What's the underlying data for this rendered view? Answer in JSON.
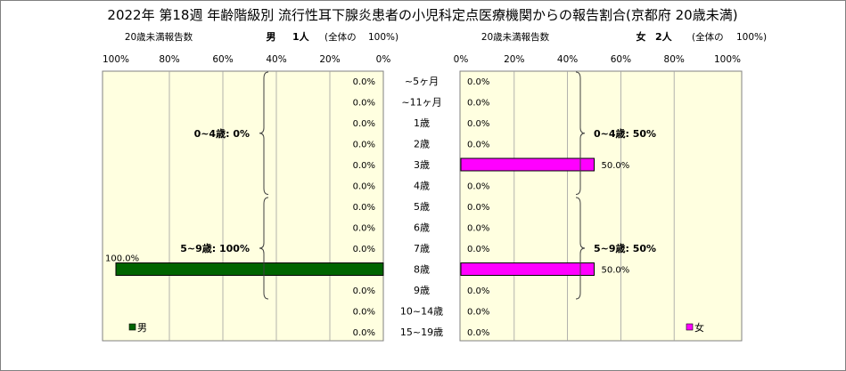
{
  "title": "2022年 第18週 年齢階級別 流行性耳下腺炎患者の小児科定点医療機関からの報告割合(京都府 20歳未満)",
  "left_header": {
    "caption": "20歳未満報告数",
    "label": "男",
    "count": "1人",
    "total_note": "(全体の",
    "total_pct": "100%)"
  },
  "right_header": {
    "caption": "20歳未満報告数",
    "label": "女",
    "count": "2人",
    "total_note": "(全体の",
    "total_pct": "100%)"
  },
  "chart_data": {
    "type": "bar",
    "categories": [
      "~5ヶ月",
      "~11ヶ月",
      "1歳",
      "2歳",
      "3歳",
      "4歳",
      "5歳",
      "6歳",
      "7歳",
      "8歳",
      "9歳",
      "10~14歳",
      "15~19歳"
    ],
    "series": [
      {
        "name": "男",
        "values": [
          0,
          0,
          0,
          0,
          0,
          0,
          0,
          0,
          0,
          100,
          0,
          0,
          0
        ],
        "color": "#006400"
      },
      {
        "name": "女",
        "values": [
          0,
          0,
          0,
          0,
          50,
          0,
          0,
          0,
          0,
          50,
          0,
          0,
          0
        ],
        "color": "#ff00ff"
      }
    ],
    "male_axis_ticks": [
      "100%",
      "80%",
      "60%",
      "40%",
      "20%",
      "0%"
    ],
    "female_axis_ticks": [
      "0%",
      "20%",
      "40%",
      "60%",
      "80%",
      "100%"
    ],
    "xlim": [
      0,
      100
    ],
    "male_labels": [
      "0.0%",
      "0.0%",
      "0.0%",
      "0.0%",
      "0.0%",
      "0.0%",
      "0.0%",
      "0.0%",
      "0.0%",
      "100.0%",
      "0.0%",
      "0.0%",
      "0.0%"
    ],
    "female_labels": [
      "0.0%",
      "0.0%",
      "0.0%",
      "0.0%",
      "50.0%",
      "0.0%",
      "0.0%",
      "0.0%",
      "0.0%",
      "50.0%",
      "0.0%",
      "0.0%",
      "0.0%"
    ],
    "male_groups": [
      {
        "label": "0~4歳: 0%",
        "from": 0,
        "to": 5
      },
      {
        "label": "5~9歳: 100%",
        "from": 6,
        "to": 10
      }
    ],
    "female_groups": [
      {
        "label": "0~4歳: 50%",
        "from": 0,
        "to": 5
      },
      {
        "label": "5~9歳: 50%",
        "from": 6,
        "to": 10
      }
    ],
    "legend_male": "男",
    "legend_female": "女",
    "plot_background": "#ffffe0",
    "grid": true
  }
}
